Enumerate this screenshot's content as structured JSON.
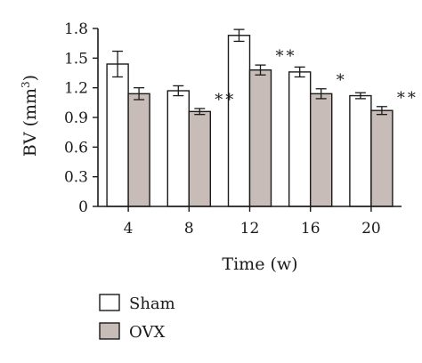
{
  "chart_data": {
    "type": "bar",
    "categories": [
      "4",
      "8",
      "12",
      "16",
      "20"
    ],
    "series": [
      {
        "name": "Sham",
        "color": "#ffffff",
        "values": [
          1.44,
          1.17,
          1.73,
          1.36,
          1.12
        ],
        "errors": [
          0.13,
          0.05,
          0.06,
          0.05,
          0.03
        ]
      },
      {
        "name": "OVX",
        "color": "#c7bcb7",
        "values": [
          1.14,
          0.96,
          1.38,
          1.14,
          0.97
        ],
        "errors": [
          0.06,
          0.03,
          0.05,
          0.05,
          0.04
        ]
      }
    ],
    "significance": [
      "",
      "**",
      "**",
      "*",
      "**"
    ],
    "xlabel": "Time (w)",
    "ylabel": "BV (mm",
    "ylabel_superscript": "3",
    "ylabel_suffix": ")",
    "ylim": [
      0,
      1.8
    ],
    "yticks": [
      "0",
      "0.3",
      "0.6",
      "0.9",
      "1.2",
      "1.5",
      "1.8"
    ],
    "grid": false,
    "legend_position": "bottom-left"
  }
}
